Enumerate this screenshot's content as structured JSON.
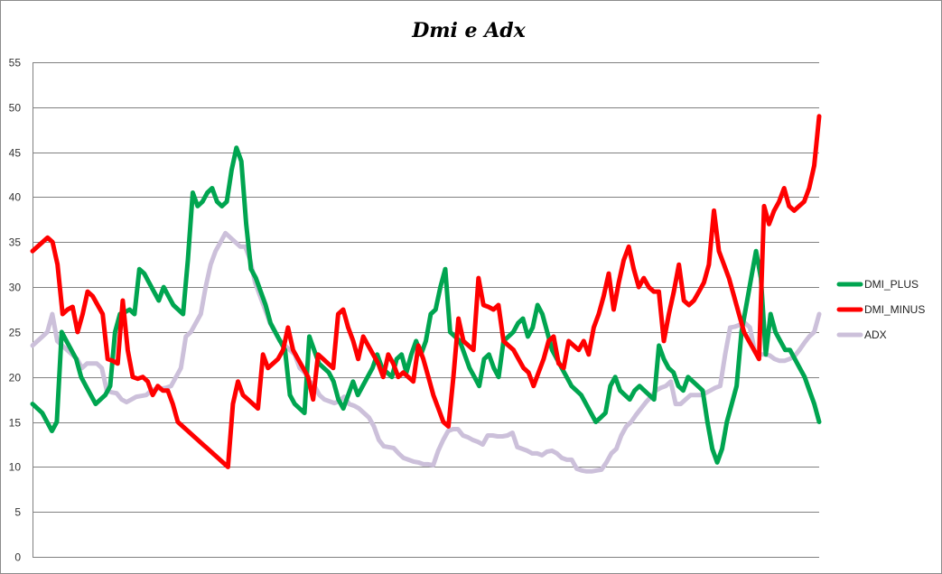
{
  "chart_data": {
    "type": "line",
    "title": "Dmi e Adx",
    "xlabel": "",
    "ylabel": "",
    "ylim": [
      0,
      55
    ],
    "yticks": [
      0,
      5,
      10,
      15,
      20,
      25,
      30,
      35,
      40,
      45,
      50,
      55
    ],
    "grid": true,
    "legend_position": "right",
    "series": [
      {
        "name": "DMI_PLUS",
        "color": "#00a550",
        "values": [
          17,
          16.5,
          16,
          15,
          14,
          15,
          25,
          24,
          23,
          22,
          20,
          19,
          18,
          17,
          17.5,
          18,
          19,
          25,
          27,
          27.2,
          27.5,
          27,
          32,
          31.5,
          30.5,
          29.5,
          28.5,
          30,
          29,
          28,
          27.5,
          27,
          33,
          40.5,
          39,
          39.5,
          40.5,
          41,
          39.5,
          39,
          39.5,
          43,
          45.5,
          44,
          37,
          32,
          31,
          29.5,
          28,
          26,
          25,
          24,
          23,
          18,
          17,
          16.5,
          16,
          24.5,
          23,
          21.5,
          21,
          20.5,
          19.5,
          17.5,
          16.5,
          18,
          19.5,
          18,
          19,
          20,
          21,
          22.5,
          21,
          20.5,
          20,
          22,
          22.5,
          20.5,
          22.5,
          24,
          22.5,
          24,
          27,
          27.5,
          30,
          32,
          25,
          24.5,
          24,
          22.5,
          21,
          20,
          19,
          22,
          22.5,
          21,
          20,
          24,
          24.5,
          25,
          26,
          26.5,
          24.5,
          25.5,
          28,
          27,
          25,
          23,
          22,
          21,
          20,
          19,
          18.5,
          18,
          17,
          16,
          15,
          15.5,
          16,
          19,
          20,
          18.5,
          18,
          17.5,
          18.5,
          19,
          18.5,
          18,
          17.5,
          23.5,
          22,
          21,
          20.5,
          19,
          18.5,
          20,
          19.5,
          19,
          18.5,
          15,
          12,
          10.5,
          12,
          15,
          17,
          19,
          25,
          28,
          31,
          34,
          31,
          22.5,
          27,
          25,
          24,
          23,
          23,
          22,
          21,
          20,
          18.5,
          17,
          15
        ]
      },
      {
        "name": "DMI_MINUS",
        "color": "#ff0000",
        "values": [
          34,
          34.5,
          35,
          35.5,
          35,
          32.5,
          27,
          27.5,
          27.8,
          25,
          27,
          29.5,
          29,
          28,
          27,
          22,
          21.8,
          21.5,
          28.5,
          23,
          20,
          19.8,
          20,
          19.5,
          18,
          19,
          18.5,
          18.5,
          17,
          15,
          14.5,
          14,
          13.5,
          13,
          12.5,
          12,
          11.5,
          11,
          10.5,
          10,
          17,
          19.5,
          18,
          17.5,
          17,
          16.5,
          22.5,
          21,
          21.5,
          22,
          23,
          25.5,
          23,
          22,
          21,
          20,
          17.5,
          22.5,
          22,
          21.5,
          21,
          27,
          27.5,
          25.5,
          24,
          22,
          24.5,
          23.5,
          22.5,
          21.5,
          20,
          22.5,
          21.5,
          20,
          20.5,
          20,
          19.5,
          23.5,
          22,
          20,
          18,
          16.5,
          15,
          14.5,
          20,
          26.5,
          24,
          23.5,
          23,
          31,
          28,
          27.8,
          27.5,
          28,
          24,
          23.5,
          23,
          22,
          21,
          20.5,
          19,
          20.5,
          22,
          24,
          24.5,
          21.5,
          21,
          24,
          23.5,
          23,
          24,
          22.5,
          25.5,
          27,
          29,
          31.5,
          27.5,
          30.5,
          33,
          34.5,
          32,
          30,
          31,
          30,
          29.5,
          29.5,
          24,
          27,
          29.5,
          32.5,
          28.5,
          28,
          28.5,
          29.5,
          30.5,
          32.5,
          38.5,
          34,
          32.5,
          31,
          29,
          27,
          25,
          24,
          23,
          22,
          39,
          37,
          38.5,
          39.5,
          41,
          39,
          38.5,
          39,
          39.5,
          41,
          43.5,
          49
        ]
      },
      {
        "name": "ADX",
        "color": "#ccc0da",
        "values": [
          23.5,
          24,
          24.5,
          25,
          27,
          24,
          23.5,
          23,
          22.5,
          22,
          21,
          21.5,
          21.5,
          21.5,
          21,
          18.5,
          18.3,
          18.2,
          17.5,
          17.2,
          17.5,
          17.8,
          17.9,
          18,
          18.5,
          18.7,
          18.7,
          18.8,
          19,
          20,
          21,
          24.5,
          25,
          26,
          27,
          30,
          32.5,
          34,
          35,
          36,
          35.5,
          35,
          34.5,
          34.5,
          33,
          30.5,
          29,
          27.5,
          26,
          25,
          24,
          23.5,
          23,
          22.5,
          21,
          20.5,
          19.5,
          19,
          18,
          17.5,
          17.3,
          17.1,
          17.3,
          17.8,
          17,
          16.8,
          16.5,
          16,
          15.5,
          14.5,
          13,
          12.3,
          12.2,
          12.1,
          11.5,
          11,
          10.8,
          10.6,
          10.5,
          10.3,
          10.3,
          10.2,
          11.8,
          13,
          14,
          14.2,
          14.2,
          13.5,
          13.3,
          13,
          12.8,
          12.5,
          13.5,
          13.5,
          13.4,
          13.4,
          13.5,
          13.8,
          12.2,
          12,
          11.8,
          11.5,
          11.5,
          11.3,
          11.7,
          11.8,
          11.5,
          11,
          10.8,
          10.8,
          9.8,
          9.6,
          9.5,
          9.5,
          9.6,
          9.7,
          10.5,
          11.5,
          12,
          13.5,
          14.5,
          15,
          15.8,
          16.5,
          17.2,
          17.8,
          18.5,
          18.8,
          19,
          19.5,
          17,
          17,
          17.5,
          18,
          18,
          18,
          18.2,
          18.5,
          18.8,
          19,
          22.5,
          25.5,
          25.6,
          25.8,
          26,
          25.5,
          22.8,
          22.5,
          22.5,
          22.4,
          22,
          21.8,
          21.8,
          22,
          22.3,
          23,
          23.8,
          24.5,
          25,
          27
        ]
      }
    ]
  }
}
